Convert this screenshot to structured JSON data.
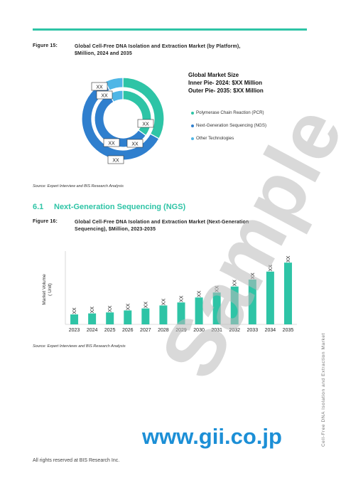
{
  "figure15": {
    "label": "Figure 15:",
    "title_line1": "Global Cell-Free DNA Isolation and Extraction Market (by Platform),",
    "title_line2": "$Million, 2024 and 2035",
    "legend_title1": "Global Market Size",
    "legend_title2": "Inner Pie- 2024: $XX Million",
    "legend_title3": "Outer Pie- 2035: $XX Million",
    "legend": [
      {
        "label": "Polymerase Chain Reaction (PCR)",
        "color": "#2ec4a6"
      },
      {
        "label": "Next-Generation Sequencing (NGS)",
        "color": "#2f7fce"
      },
      {
        "label": "Other Technologies",
        "color": "#4fb6e6"
      }
    ],
    "source": "Source: Expert Interview and BIS Research Analysis"
  },
  "section": {
    "number": "6.1",
    "title": "Next-Generation Sequencing (NGS)"
  },
  "figure16": {
    "label": "Figure 16:",
    "title_line1": "Global Cell-Free DNA Isolation and Extraction Market (Next-Generation",
    "title_line2": "Sequencing), $Million, 2023-2035",
    "source": "Source: Expert Interviews and BIS Research Analysis"
  },
  "chart_data": [
    {
      "type": "pie",
      "title": "Global Market Size",
      "rings": [
        {
          "name": "Outer Pie- 2035: $XX Million",
          "categories": [
            "Polymerase Chain Reaction (PCR)",
            "Next-Generation Sequencing (NGS)",
            "Other Technologies"
          ],
          "values": [
            33,
            60,
            7
          ],
          "labels": [
            "XX",
            "XX",
            "XX"
          ]
        },
        {
          "name": "Inner Pie- 2024: $XX Million",
          "categories": [
            "Polymerase Chain Reaction (PCR)",
            "Next-Generation Sequencing (NGS)",
            "Other Technologies"
          ],
          "values": [
            35,
            57,
            8
          ],
          "labels": [
            "XX",
            "XX",
            "XX"
          ]
        }
      ],
      "colors": [
        "#2ec4a6",
        "#2f7fce",
        "#4fb6e6"
      ],
      "legend_position": "right"
    },
    {
      "type": "bar",
      "categories": [
        "2023",
        "2024",
        "2025",
        "2026",
        "2027",
        "2028",
        "2029",
        "2030",
        "2031",
        "2032",
        "2033",
        "2034",
        "2035"
      ],
      "values": [
        10,
        11,
        12,
        14,
        16,
        19,
        22,
        27,
        32,
        38,
        45,
        53,
        62
      ],
      "data_labels": [
        "XX",
        "XX",
        "XX",
        "XX",
        "XX",
        "XX",
        "XX",
        "XX",
        "XX",
        "XX",
        "XX",
        "XX",
        "XX"
      ],
      "ylabel": "Market Volume ( Unit)",
      "ylim": [
        0,
        70
      ],
      "bar_color": "#2ec4a6",
      "grid": false
    }
  ],
  "footer": {
    "text": "All rights reserved at BIS Research Inc."
  },
  "side_text": "Cell-Free DNA Isolation and Extraction Market",
  "watermark": {
    "text": "Sample",
    "url": "www.gii.co.jp"
  }
}
